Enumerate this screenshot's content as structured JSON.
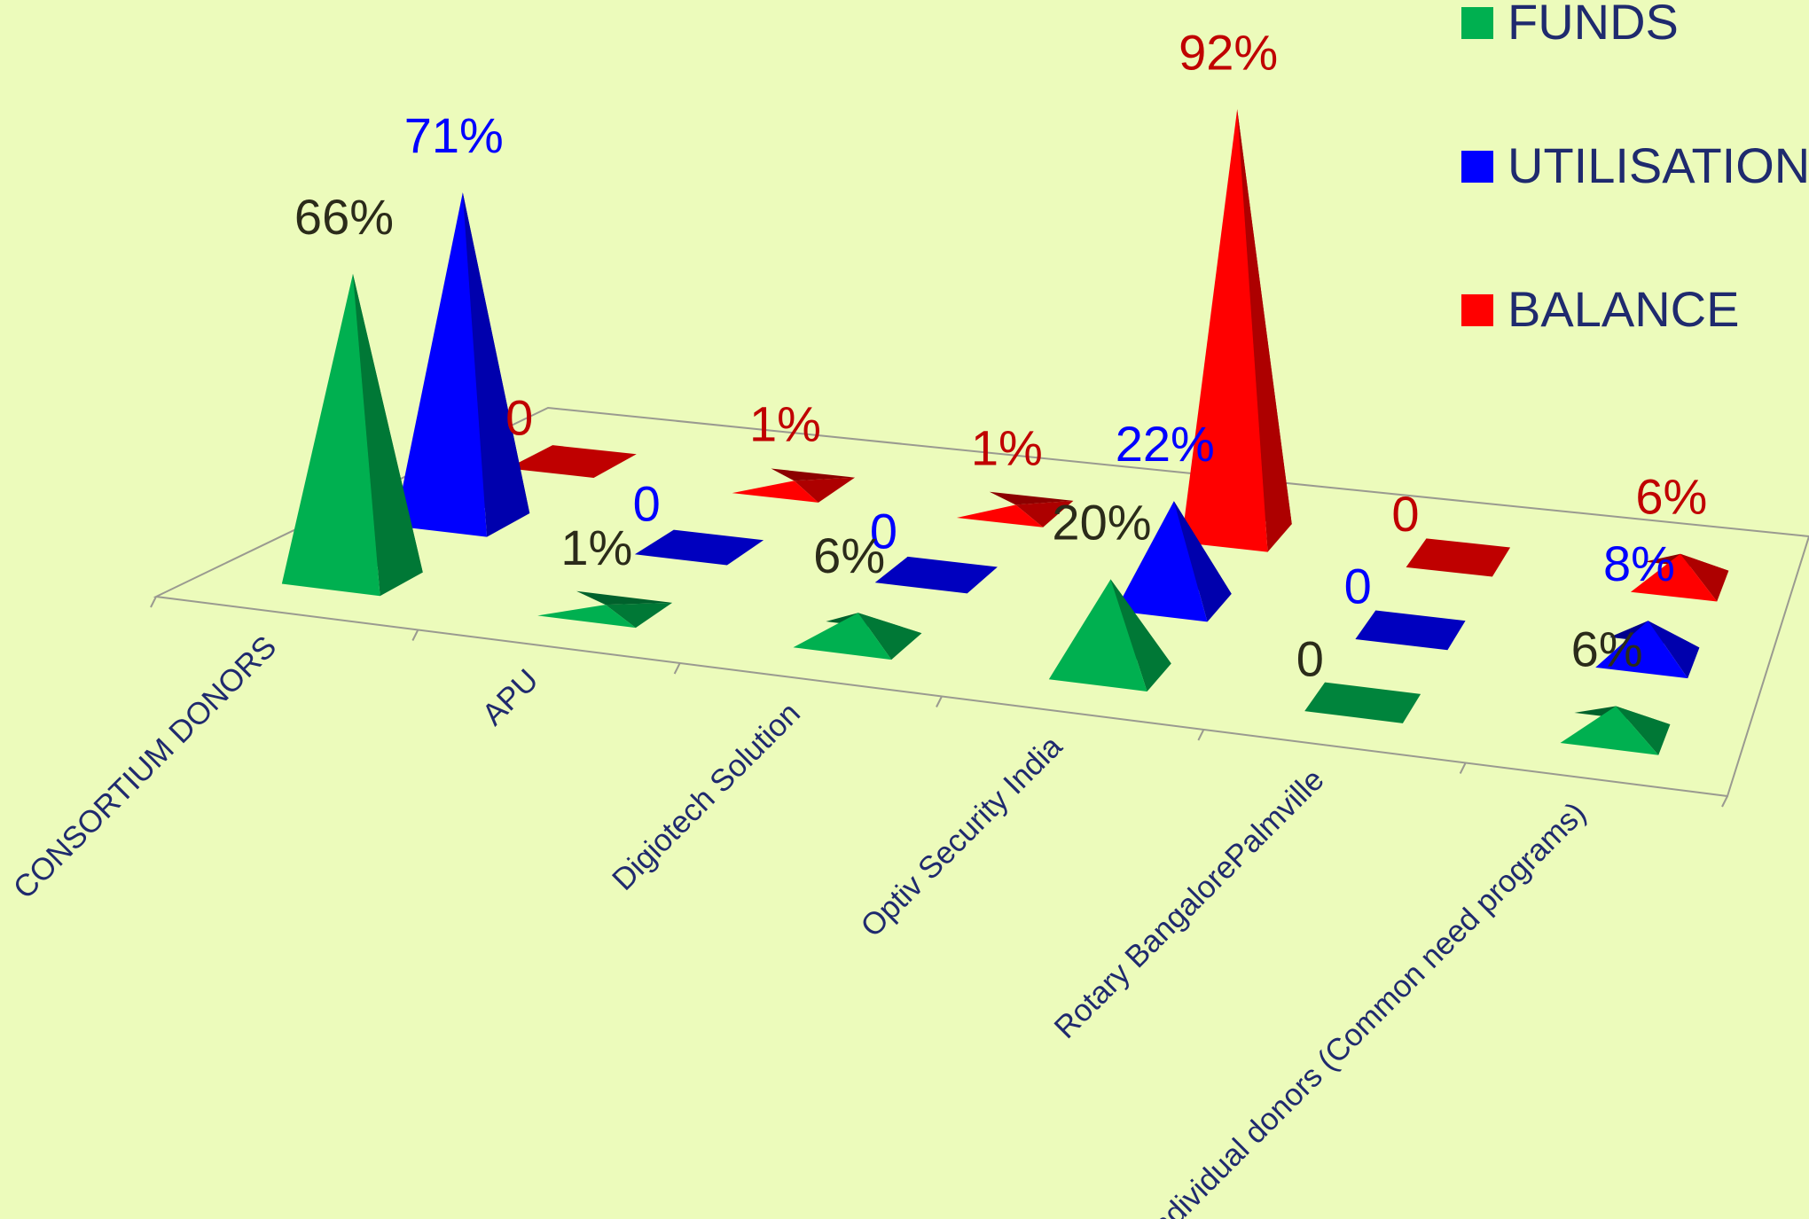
{
  "chart_data": {
    "type": "bar",
    "shape": "3d-pyramid",
    "grid": false,
    "legend_position": "top-right",
    "categories": [
      "CONSORTIUM DONORS",
      "APU",
      "Digiotech Solution",
      "Optiv Security India",
      "Rotary BangalorePalmville",
      "Individual donors (Common need programs)"
    ],
    "series": [
      {
        "name": "FUNDS",
        "color": "#00b050",
        "label_color": "#2b2b1a",
        "values": [
          66,
          1,
          6,
          20,
          0,
          6
        ],
        "labels": [
          "66%",
          "1%",
          "6%",
          "20%",
          "0",
          "6%"
        ]
      },
      {
        "name": "UTILISATION",
        "color": "#0000ff",
        "label_color": "#0000ff",
        "values": [
          71,
          0,
          0,
          22,
          0,
          8
        ],
        "labels": [
          "71%",
          "0",
          "0",
          "22%",
          "0",
          "8%"
        ]
      },
      {
        "name": "BALANCE",
        "color": "#ff0000",
        "label_color": "#c00000",
        "values": [
          0,
          1,
          1,
          92,
          0,
          6
        ],
        "labels": [
          "0",
          "1%",
          "1%",
          "92%",
          "0",
          "6%"
        ]
      }
    ]
  }
}
